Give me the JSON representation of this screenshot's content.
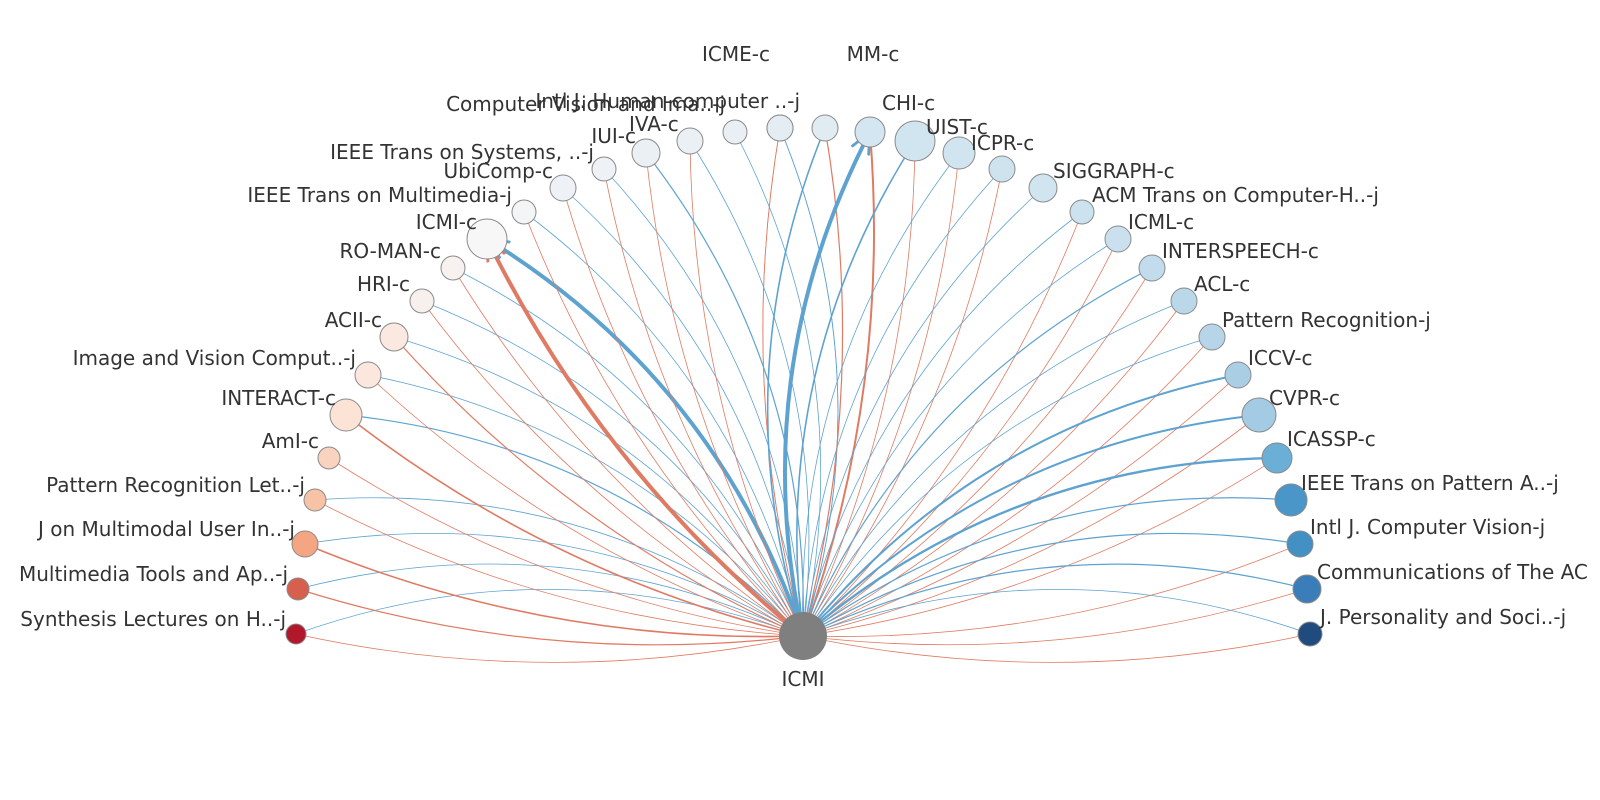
{
  "center": {
    "label": "ICMI",
    "color": "#7f7f7f"
  },
  "colors": {
    "citing": "#e07b63",
    "cited": "#5ea3d0"
  },
  "nodes": [
    {
      "label": "Synthesis Lectures on H..-j",
      "fill": "#b2182b",
      "out": 1,
      "in": 1
    },
    {
      "label": "Multimedia Tools and Ap..-j",
      "fill": "#d6604d",
      "out": 1.5,
      "in": 1
    },
    {
      "label": "J on Multimodal User In..-j",
      "fill": "#f4a582",
      "out": 2,
      "in": 1
    },
    {
      "label": "Pattern Recognition Let..-j",
      "fill": "#f7c3a6",
      "out": 1,
      "in": 1
    },
    {
      "label": "AmI-c",
      "fill": "#f9d3c0",
      "out": 1,
      "in": 0
    },
    {
      "label": "INTERACT-c",
      "fill": "#fbe3d6",
      "out": 2,
      "in": 1.5
    },
    {
      "label": "Image and Vision Comput..-j",
      "fill": "#fbe7dd",
      "out": 1,
      "in": 1
    },
    {
      "label": "ACII-c",
      "fill": "#fbe9e1",
      "out": 1.5,
      "in": 1
    },
    {
      "label": "HRI-c",
      "fill": "#f8f0ec",
      "out": 1,
      "in": 1
    },
    {
      "label": "RO-MAN-c",
      "fill": "#f7f2ef",
      "out": 1,
      "in": 1
    },
    {
      "label": "ICMI-c",
      "fill": "#f7f7f7",
      "out": 5,
      "in": 5
    },
    {
      "label": "IEEE Trans on Multimedia-j",
      "fill": "#f3f5f7",
      "out": 1,
      "in": 1
    },
    {
      "label": "UbiComp-c",
      "fill": "#eef2f6",
      "out": 1,
      "in": 1
    },
    {
      "label": "IEEE Trans on Systems, ..-j",
      "fill": "#eef2f6",
      "out": 1,
      "in": 1
    },
    {
      "label": "IUI-c",
      "fill": "#ebf0f5",
      "out": 1,
      "in": 1.5
    },
    {
      "label": "IVA-c",
      "fill": "#ebf0f5",
      "out": 1,
      "in": 1
    },
    {
      "label": "Computer Vision and Ima..-j",
      "fill": "#e9eff4",
      "out": 0,
      "in": 1
    },
    {
      "label": "",
      "fill": "#e6eef4",
      "out": 1,
      "in": 1
    },
    {
      "label": "Intl J. Human-computer ..-j",
      "fill": "#e4edf3",
      "out": 1,
      "in": 1
    },
    {
      "label": "ICME-c",
      "fill": "#e1ebf2",
      "out": 1.5,
      "in": 2
    },
    {
      "label": "MM-c",
      "fill": "#d4e6f1",
      "out": 2.5,
      "in": 5
    },
    {
      "label": "CHI-c",
      "fill": "#d1e5f0",
      "out": 1,
      "in": 2
    },
    {
      "label": "UIST-c",
      "fill": "#d1e5f0",
      "out": 1,
      "in": 1
    },
    {
      "label": "ICPR-c",
      "fill": "#cfe3ef",
      "out": 1,
      "in": 1
    },
    {
      "label": "SIGGRAPH-c",
      "fill": "#d1e5f0",
      "out": 0,
      "in": 1
    },
    {
      "label": "ACM Trans on Computer-H..-j",
      "fill": "#cde2ef",
      "out": 1,
      "in": 1
    },
    {
      "label": "ICML-c",
      "fill": "#cae0ee",
      "out": 1,
      "in": 1
    },
    {
      "label": "INTERSPEECH-c",
      "fill": "#c2dced",
      "out": 1,
      "in": 1.5
    },
    {
      "label": "ACL-c",
      "fill": "#bbd8eb",
      "out": 1,
      "in": 1
    },
    {
      "label": "Pattern Recognition-j",
      "fill": "#b6d5e9",
      "out": 1,
      "in": 1
    },
    {
      "label": "ICCV-c",
      "fill": "#aacfe5",
      "out": 1,
      "in": 2.5
    },
    {
      "label": "CVPR-c",
      "fill": "#a3cbe3",
      "out": 1,
      "in": 2.5
    },
    {
      "label": "ICASSP-c",
      "fill": "#6baed6",
      "out": 1,
      "in": 3
    },
    {
      "label": "IEEE Trans on Pattern A..-j",
      "fill": "#4a96c9",
      "out": 0,
      "in": 1.5
    },
    {
      "label": "Intl J. Computer Vision-j",
      "fill": "#4290c4",
      "out": 1,
      "in": 1.5
    },
    {
      "label": "Communications of The AC",
      "fill": "#3b7db8",
      "out": 1,
      "in": 1.5
    },
    {
      "label": "J. Personality and Soci..-j",
      "fill": "#1f4b7e",
      "out": 1,
      "in": 1
    }
  ]
}
